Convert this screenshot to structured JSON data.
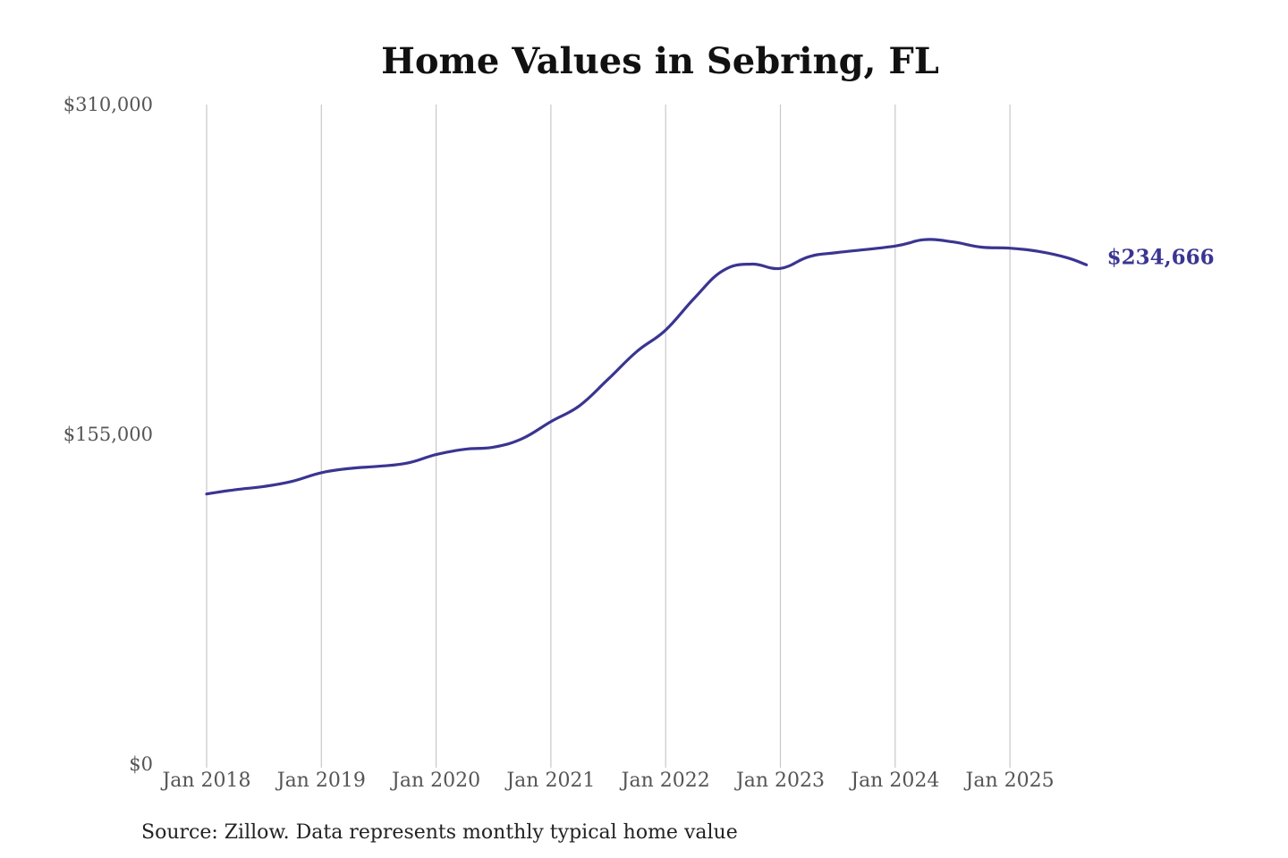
{
  "chart_data": {
    "type": "line",
    "title": "Home Values in Sebring, FL",
    "xlabel": "",
    "ylabel": "",
    "source": "Source: Zillow. Data represents monthly typical home value",
    "ylim": [
      0,
      310000
    ],
    "y_ticks": [
      {
        "value": 0,
        "label": "$0"
      },
      {
        "value": 155000,
        "label": "$155,000"
      },
      {
        "value": 310000,
        "label": "$310,000"
      }
    ],
    "x_ticks": [
      {
        "x": "2018-01",
        "label": "Jan 2018"
      },
      {
        "x": "2019-01",
        "label": "Jan 2019"
      },
      {
        "x": "2020-01",
        "label": "Jan 2020"
      },
      {
        "x": "2021-01",
        "label": "Jan 2021"
      },
      {
        "x": "2022-01",
        "label": "Jan 2022"
      },
      {
        "x": "2023-01",
        "label": "Jan 2023"
      },
      {
        "x": "2024-01",
        "label": "Jan 2024"
      },
      {
        "x": "2025-01",
        "label": "Jan 2025"
      }
    ],
    "grid": {
      "vertical": true,
      "horizontal": false
    },
    "series": [
      {
        "color": "#3a3591",
        "end_label": "$234,666",
        "points": [
          {
            "x": "2018-01",
            "y": 127000
          },
          {
            "x": "2018-04",
            "y": 129000
          },
          {
            "x": "2018-07",
            "y": 130500
          },
          {
            "x": "2018-10",
            "y": 133000
          },
          {
            "x": "2019-01",
            "y": 137000
          },
          {
            "x": "2019-04",
            "y": 139000
          },
          {
            "x": "2019-07",
            "y": 140000
          },
          {
            "x": "2019-10",
            "y": 141500
          },
          {
            "x": "2020-01",
            "y": 145500
          },
          {
            "x": "2020-04",
            "y": 148000
          },
          {
            "x": "2020-07",
            "y": 149000
          },
          {
            "x": "2020-10",
            "y": 153000
          },
          {
            "x": "2021-01",
            "y": 161000
          },
          {
            "x": "2021-04",
            "y": 168500
          },
          {
            "x": "2021-07",
            "y": 181000
          },
          {
            "x": "2021-10",
            "y": 194000
          },
          {
            "x": "2022-01",
            "y": 204000
          },
          {
            "x": "2022-04",
            "y": 219000
          },
          {
            "x": "2022-07",
            "y": 232000
          },
          {
            "x": "2022-10",
            "y": 235000
          },
          {
            "x": "2023-01",
            "y": 233000
          },
          {
            "x": "2023-04",
            "y": 238500
          },
          {
            "x": "2023-07",
            "y": 240500
          },
          {
            "x": "2024-01",
            "y": 243500
          },
          {
            "x": "2024-04",
            "y": 246500
          },
          {
            "x": "2024-07",
            "y": 245500
          },
          {
            "x": "2024-10",
            "y": 243000
          },
          {
            "x": "2025-01",
            "y": 242500
          },
          {
            "x": "2025-04",
            "y": 241000
          },
          {
            "x": "2025-07",
            "y": 238000
          },
          {
            "x": "2025-09",
            "y": 234666
          }
        ]
      }
    ]
  }
}
